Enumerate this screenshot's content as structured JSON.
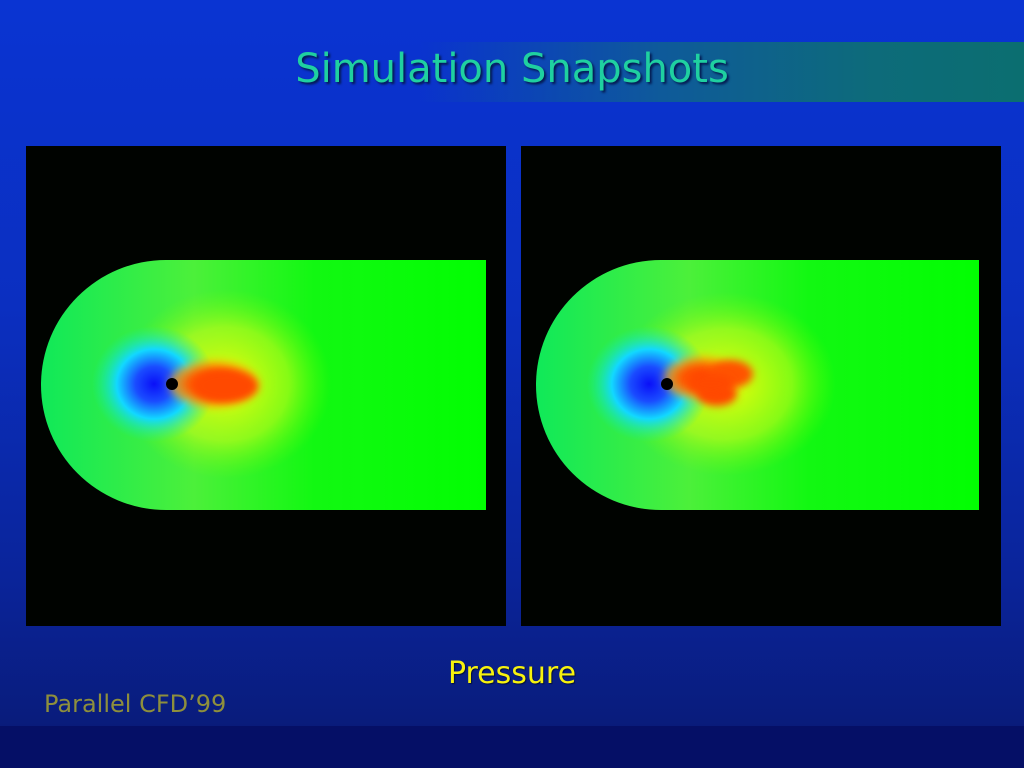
{
  "slide": {
    "title": "Simulation Snapshots",
    "caption": "Pressure",
    "footer": "Parallel CFD’99"
  },
  "colors": {
    "background": "#0a34d2",
    "title": "#1fd0a0",
    "caption": "#f7f20e",
    "footer": "#8e8f3c",
    "field": "#00ff00",
    "high_pressure": "#ff4a00",
    "low_pressure": "#1020ff"
  },
  "panels": [
    {
      "name": "snapshot-left"
    },
    {
      "name": "snapshot-right"
    }
  ]
}
